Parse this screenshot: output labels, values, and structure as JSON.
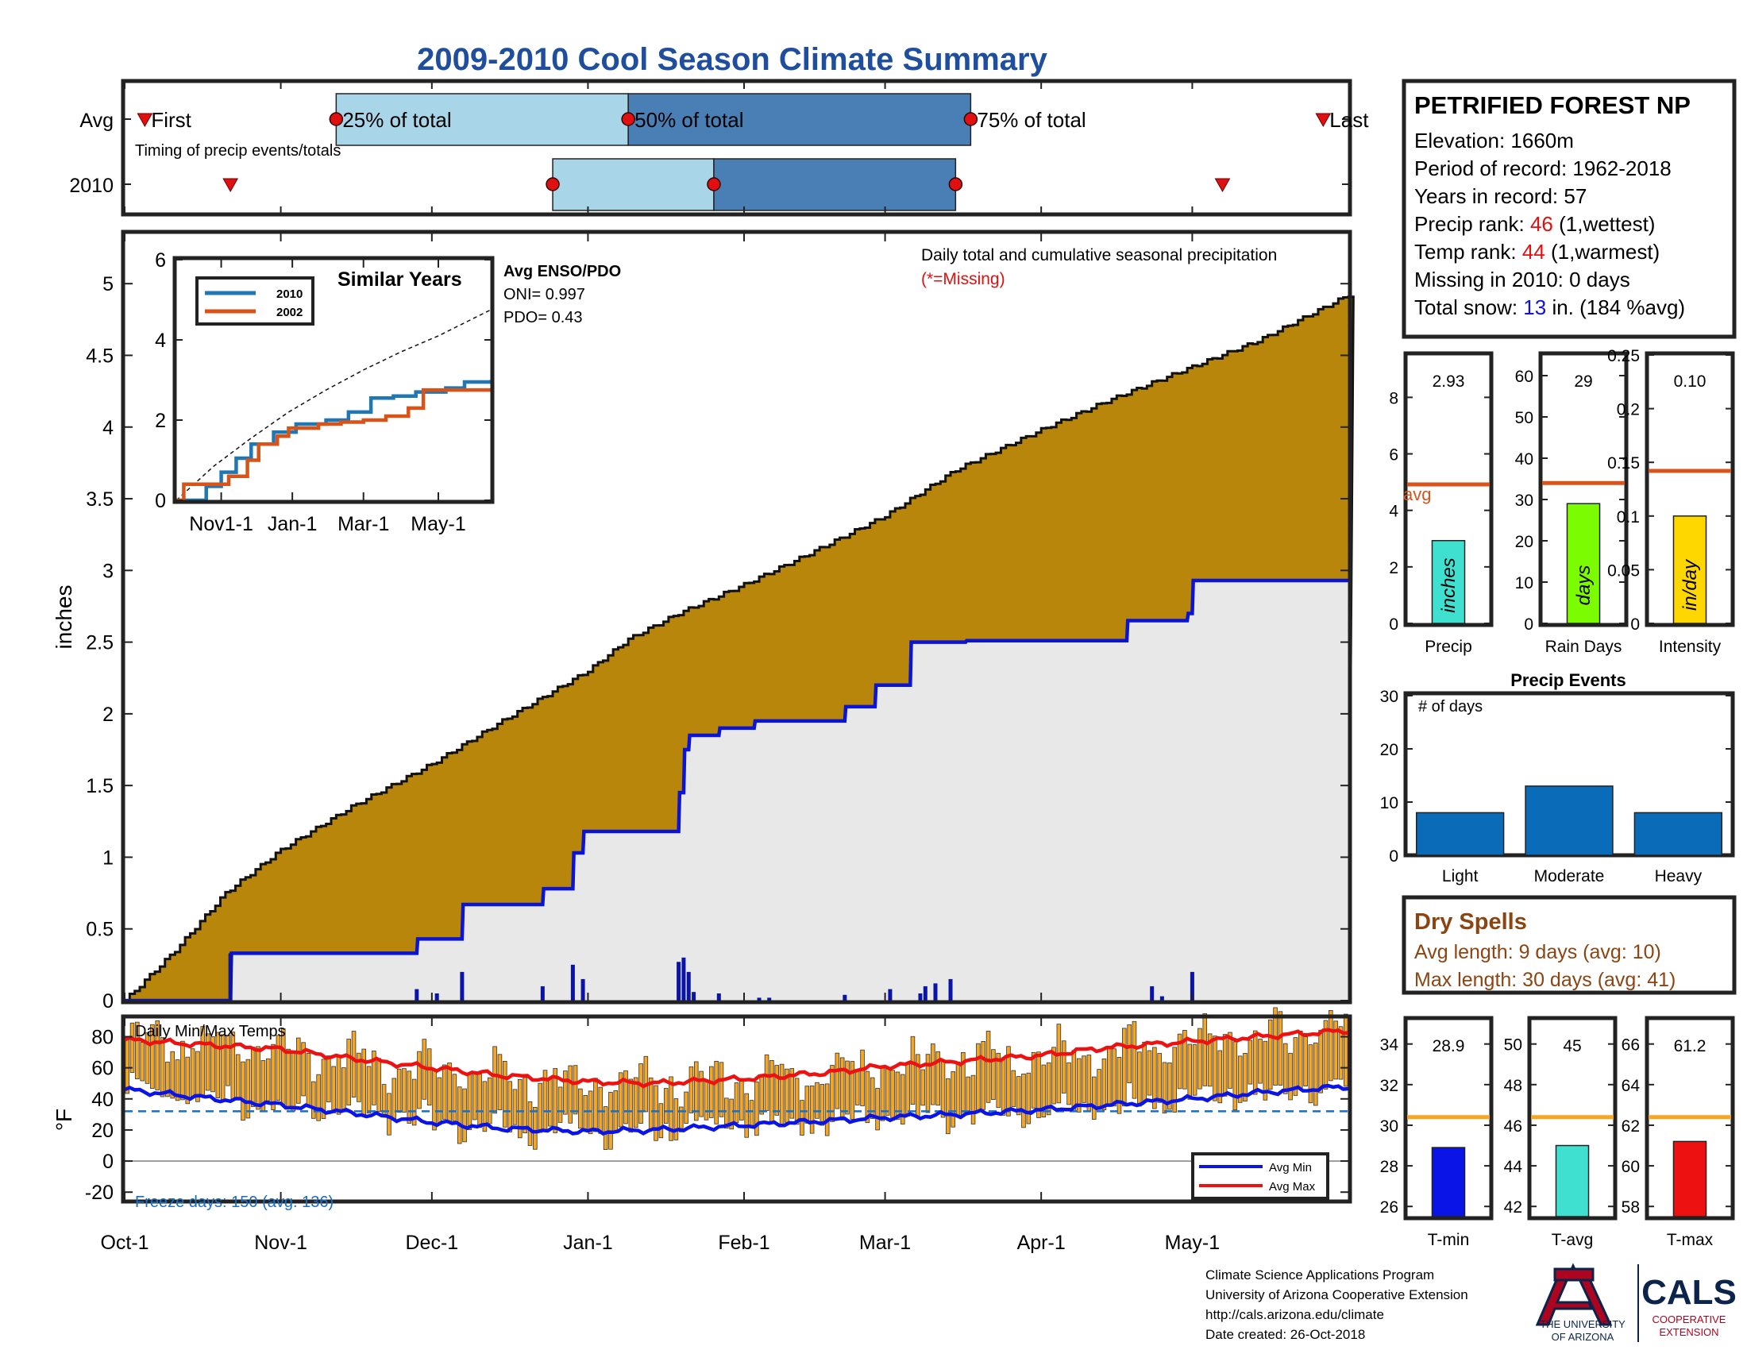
{
  "title": "2009-2010 Cool Season Climate Summary",
  "colors": {
    "title": "#1f4e9e",
    "cum_avg_fill": "#b8860b",
    "cum_obs_fill": "#e8e8e8",
    "cum_obs_line": "#0a14d6",
    "daily_bar": "#0a14a8",
    "temp_bar": "#f5a623",
    "avg_min": "#0a14e6",
    "avg_max": "#ee1111",
    "freeze_line": "#1a6fc4",
    "timing_light": "#a9d5e8",
    "timing_dark": "#4a7fb5",
    "marker": "#e01010",
    "avg_line": "#d9541b",
    "temp_avg_line": "#f5a623",
    "events_bar": "#0a6cb8",
    "precip_bar": "#40e0d0",
    "raindays_bar": "#7cfc00",
    "intensity_bar": "#ffd700",
    "tmin_bar": "#0a14e6",
    "tavg_bar": "#40e0d0",
    "tmax_bar": "#ee1111",
    "rank_red": "#e01010",
    "snow_blue": "#1010e0",
    "dry_brown": "#8b4513",
    "ua_red": "#ab0520",
    "ua_blue": "#0c234b"
  },
  "timing": {
    "row_labels": [
      "Avg",
      "2010"
    ],
    "caption": "Timing of precip events/totals",
    "labels": {
      "first": "First",
      "p25": "25% of total",
      "p50": "50% of total",
      "p75": "75% of total",
      "last": "Last"
    },
    "avg": {
      "first": 4,
      "p25": 42,
      "p50": 100,
      "p75": 168,
      "last": 238
    },
    "y2010": {
      "first": 21,
      "p25": 85,
      "p50": 117,
      "p75": 165,
      "last": 218
    }
  },
  "x_axis": {
    "tick_labels": [
      "Oct-1",
      "Nov-1",
      "Dec-1",
      "Jan-1",
      "Feb-1",
      "Mar-1",
      "Apr-1",
      "May-1"
    ],
    "tick_days": [
      0,
      31,
      61,
      92,
      123,
      151,
      182,
      212
    ],
    "total_days": 243
  },
  "precip_panel": {
    "ylabel": "inches",
    "yticks": [
      "0",
      "0.5",
      "1",
      "1.5",
      "2",
      "2.5",
      "3",
      "3.5",
      "4",
      "4.5",
      "5"
    ],
    "ylim": [
      0,
      5.35
    ],
    "note": "Daily total and cumulative seasonal precipitation",
    "missing_note": "(*=Missing)"
  },
  "enso": {
    "title": "Avg ENSO/PDO",
    "oni": "ONI= 0.997",
    "pdo": "PDO= 0.43"
  },
  "inset": {
    "title": "Similar Years",
    "legend": [
      "2010",
      "2002"
    ],
    "yticks": [
      "0",
      "2",
      "4",
      "6"
    ],
    "xticks": [
      "Nov1-1",
      "Jan-1",
      "Mar-1",
      "May-1"
    ]
  },
  "temp_panel": {
    "title": "Daily Min/Max Temps",
    "ylabel": "°F",
    "yticks": [
      "-20",
      "0",
      "20",
      "40",
      "60",
      "80"
    ],
    "ylim": [
      -25,
      92
    ],
    "freeze_threshold": 32,
    "freeze_note": "Freeze days: 150 (avg. 136)",
    "legend": [
      "Avg Min",
      "Avg Max"
    ]
  },
  "chart_data": [
    {
      "type": "area",
      "title": "Daily total and cumulative seasonal precipitation",
      "ylabel": "inches",
      "ylim": [
        0,
        5.35
      ],
      "series": [
        {
          "name": "Avg cumulative",
          "x": [
            0,
            10,
            20,
            31,
            45,
            61,
            75,
            92,
            100,
            110,
            123,
            135,
            151,
            165,
            182,
            195,
            212,
            225,
            243
          ],
          "values": [
            0,
            0.35,
            0.75,
            1.05,
            1.35,
            1.65,
            1.95,
            2.3,
            2.52,
            2.7,
            2.9,
            3.1,
            3.38,
            3.7,
            3.98,
            4.18,
            4.42,
            4.6,
            4.92
          ]
        },
        {
          "name": "2010 cumulative",
          "x": [
            0,
            21,
            21.2,
            58,
            58.2,
            67,
            67.2,
            83,
            83.2,
            89,
            89.2,
            91,
            91.2,
            110,
            110.2,
            111,
            111.2,
            112,
            112.2,
            118,
            118.2,
            125,
            125.2,
            143,
            143.2,
            149,
            149.2,
            156,
            156.2,
            167,
            167.2,
            199,
            199.2,
            211,
            211.2,
            212,
            212.2,
            243
          ],
          "values": [
            0,
            0,
            0.33,
            0.33,
            0.43,
            0.43,
            0.67,
            0.67,
            0.78,
            0.78,
            1.03,
            1.03,
            1.18,
            1.18,
            1.45,
            1.45,
            1.75,
            1.75,
            1.85,
            1.85,
            1.9,
            1.9,
            1.95,
            1.95,
            2.05,
            2.05,
            2.2,
            2.2,
            2.5,
            2.5,
            2.51,
            2.51,
            2.65,
            2.65,
            2.7,
            2.7,
            2.93,
            2.93
          ]
        }
      ],
      "daily": {
        "x": [
          21,
          58,
          62,
          67,
          83,
          89,
          91,
          110,
          111,
          112,
          113,
          118,
          126,
          128,
          143,
          152,
          158,
          159,
          161,
          164,
          204,
          206,
          212
        ],
        "values": [
          0.33,
          0.08,
          0.05,
          0.2,
          0.1,
          0.25,
          0.15,
          0.27,
          0.3,
          0.2,
          0.06,
          0.05,
          0.02,
          0.02,
          0.04,
          0.08,
          0.05,
          0.1,
          0.12,
          0.15,
          0.1,
          0.03,
          0.2
        ]
      }
    },
    {
      "type": "line",
      "title": "Similar Years",
      "ylim": [
        0,
        6
      ],
      "series": [
        {
          "name": "2010",
          "x": [
            0,
            0.3,
            0.4,
            0.55,
            0.6,
            0.8,
            1.0,
            1.3,
            1.6,
            2.0,
            2.3,
            2.6,
            2.9,
            3.2,
            3.6,
            3.85,
            4.2
          ],
          "values": [
            0,
            0,
            0.35,
            0.35,
            0.7,
            1.05,
            1.4,
            1.7,
            1.9,
            2.0,
            2.2,
            2.55,
            2.6,
            2.7,
            2.8,
            2.95,
            3.0
          ]
        },
        {
          "name": "2002",
          "x": [
            0,
            0.1,
            0.5,
            0.7,
            0.95,
            1.1,
            1.35,
            1.5,
            1.9,
            2.2,
            2.5,
            2.8,
            3.1,
            3.3,
            3.6,
            4.2
          ],
          "values": [
            0,
            0.4,
            0.4,
            0.6,
            1.0,
            1.4,
            1.6,
            1.8,
            1.9,
            1.95,
            2.0,
            2.1,
            2.3,
            2.75,
            2.75,
            2.75
          ]
        },
        {
          "name": "Avg",
          "x": [
            0,
            0.5,
            1.0,
            1.5,
            2.0,
            2.5,
            3.0,
            3.5,
            4.2
          ],
          "values": [
            0,
            0.85,
            1.55,
            2.2,
            2.75,
            3.25,
            3.7,
            4.1,
            4.75
          ]
        }
      ]
    },
    {
      "type": "bar",
      "title": "Daily Min/Max Temps",
      "ylabel": "°F",
      "ylim": [
        -25,
        92
      ],
      "series": [
        {
          "name": "Avg Max",
          "x": [
            0,
            15,
            31,
            45,
            61,
            75,
            92,
            105,
            123,
            140,
            151,
            165,
            182,
            195,
            212,
            225,
            243
          ],
          "values": [
            78,
            75,
            72,
            66,
            60,
            55,
            51,
            50,
            53,
            57,
            61,
            64,
            68,
            73,
            77,
            80,
            84
          ]
        },
        {
          "name": "Avg Min",
          "x": [
            0,
            15,
            31,
            45,
            61,
            75,
            92,
            105,
            123,
            140,
            151,
            165,
            182,
            195,
            212,
            225,
            243
          ],
          "values": [
            46,
            41,
            36,
            31,
            25,
            21,
            19,
            20,
            23,
            26,
            28,
            30,
            33,
            36,
            40,
            44,
            48
          ]
        }
      ],
      "daily_ranges": "min/max bars per day (approximate, seeded)"
    },
    {
      "type": "bar",
      "title": "Precip",
      "ylim": [
        0,
        9.5
      ],
      "categories": [
        "inches"
      ],
      "values": [
        2.93
      ],
      "avg": 4.92,
      "value_label": "2.93",
      "tick_labels": [
        "0",
        "2",
        "4",
        "6",
        "8"
      ],
      "xlabel": "Precip",
      "avg_label": "avg"
    },
    {
      "type": "bar",
      "title": "Rain Days",
      "ylim": [
        0,
        65
      ],
      "categories": [
        "days"
      ],
      "values": [
        29
      ],
      "avg": 34,
      "value_label": "29",
      "tick_labels": [
        "0",
        "10",
        "20",
        "30",
        "40",
        "50",
        "60"
      ],
      "xlabel": "Rain Days"
    },
    {
      "type": "bar",
      "title": "Intensity",
      "ylim": [
        0,
        0.25
      ],
      "categories": [
        "in/day"
      ],
      "values": [
        0.1
      ],
      "avg": 0.142,
      "value_label": "0.10",
      "tick_labels": [
        "0",
        "0.05",
        "0.1",
        "0.15",
        "0.2",
        "0.25"
      ],
      "xlabel": "Intensity"
    },
    {
      "type": "bar",
      "title": "Precip Events",
      "ylabel": "# of days",
      "ylim": [
        0,
        30
      ],
      "categories": [
        "Light",
        "Moderate",
        "Heavy"
      ],
      "values": [
        8,
        13,
        8
      ],
      "tick_labels": [
        "0",
        "10",
        "20",
        "30"
      ]
    },
    {
      "type": "bar",
      "title": "T-min",
      "ylim": [
        25.5,
        35.2
      ],
      "categories": [
        "T-min"
      ],
      "values": [
        28.9
      ],
      "avg": 30.4,
      "value_label": "28.9",
      "tick_labels": [
        "26",
        "28",
        "30",
        "32",
        "34"
      ],
      "xlabel": "T-min"
    },
    {
      "type": "bar",
      "title": "T-avg",
      "ylim": [
        41.5,
        51.2
      ],
      "categories": [
        "T-avg"
      ],
      "values": [
        45
      ],
      "avg": 46.4,
      "value_label": "45",
      "tick_labels": [
        "42",
        "44",
        "46",
        "48",
        "50"
      ],
      "xlabel": "T-avg"
    },
    {
      "type": "bar",
      "title": "T-max",
      "ylim": [
        57.5,
        67.2
      ],
      "categories": [
        "T-max"
      ],
      "values": [
        61.2
      ],
      "avg": 62.4,
      "value_label": "61.2",
      "tick_labels": [
        "58",
        "60",
        "62",
        "64",
        "66"
      ],
      "xlabel": "T-max"
    }
  ],
  "station": {
    "name": "PETRIFIED FOREST NP",
    "elevation": "Elevation: 1660m",
    "period": "Period of record: 1962-2018",
    "years": "Years in record: 57",
    "precip_rank_prefix": "Precip rank: ",
    "precip_rank_value": "46",
    "precip_rank_suffix": " (1,wettest)",
    "temp_rank_prefix": "Temp rank: ",
    "temp_rank_value": "44",
    "temp_rank_suffix": " (1,warmest)",
    "missing": "Missing in 2010: 0 days",
    "snow_prefix": "Total snow: ",
    "snow_value": "13",
    "snow_suffix": " in. (184 %avg)"
  },
  "dry_spells": {
    "title": "Dry Spells",
    "avg_length": "Avg length: 9 days (avg: 10)",
    "max_length": "Max length: 30 days (avg: 41)"
  },
  "footer": {
    "line1": "Climate Science Applications Program",
    "line2": "University of Arizona Cooperative Extension",
    "line3": "http://cals.arizona.edu/climate",
    "line4": " Date created: 26-Oct-2018",
    "ua_line1": "THE UNIVERSITY",
    "ua_line2": "OF ARIZONA",
    "cals": "CALS",
    "cals_line1": "COOPERATIVE",
    "cals_line2": "EXTENSION"
  }
}
